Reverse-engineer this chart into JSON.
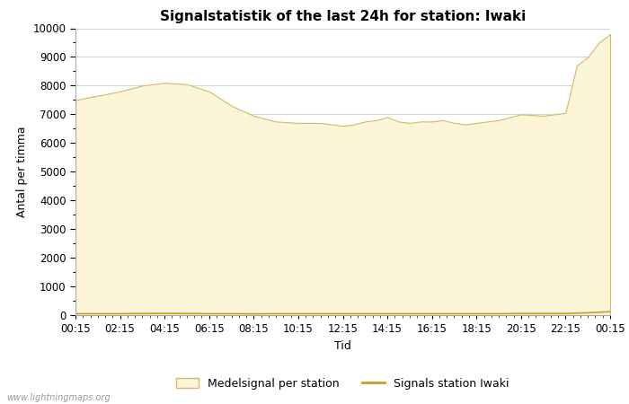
{
  "title": "Signalstatistik of the last 24h for station: Iwaki",
  "xlabel": "Tid",
  "ylabel": "Antal per timma",
  "watermark": "www.lightningmaps.org",
  "legend_area": "Medelsignal per station",
  "legend_line": "Signals station Iwaki",
  "fill_color": "#fdf5d8",
  "fill_edge_color": "#d4b86a",
  "line_color": "#c8a020",
  "tick_labels": [
    "00:15",
    "02:15",
    "04:15",
    "06:15",
    "08:15",
    "10:15",
    "12:15",
    "14:15",
    "16:15",
    "18:15",
    "20:15",
    "22:15",
    "00:15"
  ],
  "ylim": [
    0,
    10000
  ],
  "yticks": [
    0,
    1000,
    2000,
    3000,
    4000,
    5000,
    6000,
    7000,
    8000,
    9000,
    10000
  ],
  "area_x": [
    0,
    0.5,
    1,
    1.5,
    2,
    2.5,
    3,
    3.5,
    4,
    4.5,
    5,
    5.5,
    6,
    6.25,
    6.5,
    6.75,
    7,
    7.25,
    7.5,
    7.75,
    8,
    8.25,
    8.5,
    8.75,
    9,
    9.5,
    10,
    10.5,
    11,
    11.25,
    11.5,
    11.75,
    12
  ],
  "area_y": [
    7500,
    7650,
    7800,
    8000,
    8100,
    8050,
    7800,
    7300,
    6950,
    6750,
    6700,
    6700,
    6600,
    6650,
    6750,
    6800,
    6900,
    6750,
    6700,
    6750,
    6750,
    6800,
    6700,
    6650,
    6700,
    6800,
    7000,
    6950,
    7050,
    8700,
    9000,
    9500,
    9800
  ],
  "line_y": [
    50,
    50,
    50,
    55,
    60,
    55,
    50,
    50,
    45,
    50,
    50,
    50,
    50,
    50,
    50,
    50,
    50,
    50,
    50,
    50,
    50,
    50,
    50,
    50,
    50,
    50,
    55,
    55,
    55,
    70,
    80,
    100,
    120
  ],
  "background_color": "#ffffff",
  "grid_color": "#cccccc",
  "title_fontsize": 11,
  "label_fontsize": 9,
  "tick_fontsize": 8.5,
  "legend_fontsize": 9
}
